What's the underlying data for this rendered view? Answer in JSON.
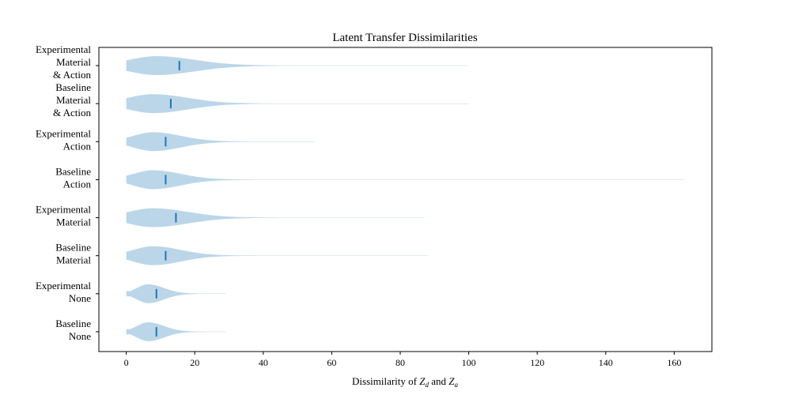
{
  "chart_data": {
    "type": "violin",
    "title": "Latent Transfer Dissimilarities",
    "xlabel": "Dissimilarity of Z_d and Z_a",
    "ylabel": "",
    "xlim": [
      -8,
      171
    ],
    "xticks": [
      0,
      20,
      40,
      60,
      80,
      100,
      120,
      140,
      160
    ],
    "grid": false,
    "orientation": "horizontal",
    "colors": {
      "body": "#1f77b4",
      "mean": "#1f77b4"
    },
    "categories": [
      {
        "label_lines": [
          "Experimental",
          "Material",
          "& Action"
        ],
        "min": 0,
        "max": 100,
        "mode": 9,
        "mean": 15.5,
        "spread": 11
      },
      {
        "label_lines": [
          "Baseline",
          "Material",
          "& Action"
        ],
        "min": 0,
        "max": 100,
        "mode": 8,
        "mean": 13,
        "spread": 10
      },
      {
        "label_lines": [
          "Experimental",
          "Action"
        ],
        "min": 0,
        "max": 55,
        "mode": 8,
        "mean": 11.5,
        "spread": 8
      },
      {
        "label_lines": [
          "Baseline",
          "Action"
        ],
        "min": 0,
        "max": 163,
        "mode": 8,
        "mean": 11.5,
        "spread": 8
      },
      {
        "label_lines": [
          "Experimental",
          "Material"
        ],
        "min": 0,
        "max": 87,
        "mode": 8,
        "mean": 14.5,
        "spread": 10
      },
      {
        "label_lines": [
          "Baseline",
          "Material"
        ],
        "min": 0,
        "max": 88,
        "mode": 8,
        "mean": 11.5,
        "spread": 8
      },
      {
        "label_lines": [
          "Experimental",
          "None"
        ],
        "min": 0,
        "max": 29,
        "mode": 6.5,
        "mean": 8.8,
        "spread": 4.5
      },
      {
        "label_lines": [
          "Baseline",
          "None"
        ],
        "min": 0,
        "max": 29,
        "mode": 6.5,
        "mean": 8.8,
        "spread": 4.5
      }
    ]
  }
}
